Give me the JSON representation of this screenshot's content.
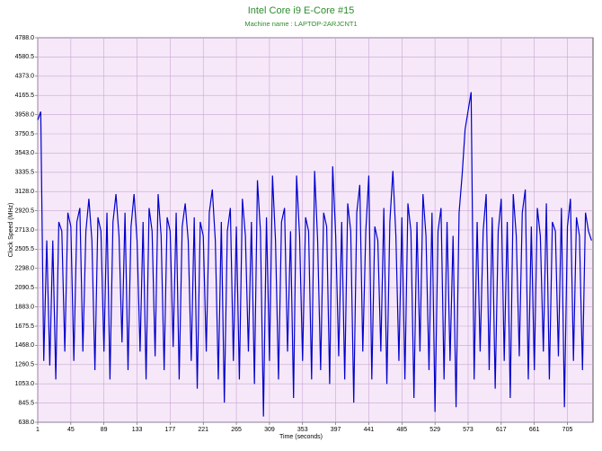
{
  "chart_data": {
    "type": "line",
    "title": "Intel Core i9 E-Core #15",
    "subtitle": "Machine name : LAPTOP-2ARJCNT1",
    "x_label": "Time (seconds)",
    "y_label": "Clock Speed (MHz)",
    "color": "#0000cc",
    "grid": true,
    "xlim": [
      1,
      739
    ],
    "xticks": [
      1,
      45,
      89,
      133,
      177,
      221,
      265,
      309,
      353,
      397,
      441,
      485,
      529,
      573,
      617,
      661,
      705
    ],
    "ylim": [
      638,
      4788
    ],
    "yticks": [
      {
        "value": 638,
        "label": "638.0"
      },
      {
        "value": 845.5,
        "label": "845.5"
      },
      {
        "value": 1053,
        "label": "1053.0"
      },
      {
        "value": 1260.5,
        "label": "1260.5"
      },
      {
        "value": 1468,
        "label": "1468.0"
      },
      {
        "value": 1675.5,
        "label": "1675.5"
      },
      {
        "value": 1883,
        "label": "1883.0"
      },
      {
        "value": 2090.5,
        "label": "2090.5"
      },
      {
        "value": 2298,
        "label": "2298.0"
      },
      {
        "value": 2505.5,
        "label": "2505.5"
      },
      {
        "value": 2713,
        "label": "2713.0"
      },
      {
        "value": 2920.5,
        "label": "2920.5"
      },
      {
        "value": 3128,
        "label": "3128.0"
      },
      {
        "value": 3335.5,
        "label": "3335.5"
      },
      {
        "value": 3543,
        "label": "3543.0"
      },
      {
        "value": 3750.5,
        "label": "3750.5"
      },
      {
        "value": 3958,
        "label": "3958.0"
      },
      {
        "value": 4165.5,
        "label": "4165.5"
      },
      {
        "value": 4373,
        "label": "4373.0"
      },
      {
        "value": 4580.5,
        "label": "4580.5"
      },
      {
        "value": 4788,
        "label": "4788.0"
      }
    ],
    "x": [
      1,
      5,
      9,
      13,
      17,
      21,
      25,
      29,
      33,
      37,
      41,
      45,
      49,
      53,
      57,
      61,
      65,
      69,
      73,
      77,
      81,
      85,
      89,
      93,
      97,
      101,
      105,
      109,
      113,
      117,
      121,
      125,
      129,
      133,
      137,
      141,
      145,
      149,
      153,
      157,
      161,
      165,
      169,
      173,
      177,
      181,
      185,
      189,
      193,
      197,
      201,
      205,
      209,
      213,
      217,
      221,
      225,
      229,
      233,
      237,
      241,
      245,
      249,
      253,
      257,
      261,
      265,
      269,
      273,
      277,
      281,
      285,
      289,
      293,
      297,
      301,
      305,
      309,
      313,
      317,
      321,
      325,
      329,
      333,
      337,
      341,
      345,
      349,
      353,
      357,
      361,
      365,
      369,
      373,
      377,
      381,
      385,
      389,
      393,
      397,
      401,
      405,
      409,
      413,
      417,
      421,
      425,
      429,
      433,
      437,
      441,
      445,
      449,
      453,
      457,
      461,
      465,
      469,
      473,
      477,
      481,
      485,
      489,
      493,
      497,
      501,
      505,
      509,
      513,
      517,
      521,
      525,
      529,
      533,
      537,
      541,
      545,
      549,
      553,
      557,
      561,
      565,
      569,
      573,
      577,
      581,
      585,
      589,
      593,
      597,
      601,
      605,
      609,
      613,
      617,
      621,
      625,
      629,
      633,
      637,
      641,
      645,
      649,
      653,
      657,
      661,
      665,
      669,
      673,
      677,
      681,
      685,
      689,
      693,
      697,
      701,
      705,
      709,
      713,
      717,
      721,
      725,
      729,
      733,
      737
    ],
    "values": [
      3900,
      3990,
      1300,
      2600,
      1250,
      2600,
      1100,
      2800,
      2700,
      1400,
      2900,
      2750,
      1300,
      2800,
      2950,
      1400,
      2700,
      3050,
      2600,
      1200,
      2850,
      2700,
      1400,
      2900,
      1100,
      2800,
      3100,
      2650,
      1500,
      2900,
      1200,
      2750,
      3100,
      2600,
      1400,
      2800,
      1100,
      2950,
      2700,
      1350,
      3100,
      2650,
      1200,
      2850,
      2700,
      1450,
      2900,
      1100,
      2750,
      3000,
      2600,
      1300,
      2850,
      1000,
      2800,
      2650,
      1400,
      2900,
      3150,
      2600,
      1100,
      2800,
      850,
      2700,
      2950,
      1300,
      2750,
      1100,
      3050,
      2650,
      1400,
      2800,
      1050,
      3250,
      2700,
      700,
      2850,
      1300,
      3300,
      2600,
      1100,
      2800,
      2950,
      1400,
      2700,
      900,
      3300,
      2650,
      1300,
      2850,
      2700,
      1100,
      3350,
      2600,
      1200,
      2900,
      2750,
      1050,
      3400,
      2650,
      1350,
      2800,
      1100,
      3000,
      2700,
      850,
      2900,
      3200,
      1400,
      2700,
      3300,
      1100,
      2750,
      2600,
      1400,
      2950,
      1050,
      2800,
      3350,
      2650,
      1300,
      2850,
      1100,
      3000,
      2700,
      900,
      2800,
      1400,
      3100,
      2650,
      1200,
      2900,
      750,
      2700,
      2950,
      1100,
      2800,
      1300,
      2650,
      800,
      2900,
      3300,
      3800,
      4000,
      4200,
      1100,
      2800,
      1400,
      2700,
      3100,
      1200,
      2850,
      1000,
      2700,
      3050,
      1300,
      2800,
      900,
      3100,
      2650,
      1350,
      2900,
      3150,
      1100,
      2750,
      1200,
      2950,
      2650,
      1400,
      3000,
      1100,
      2800,
      2700,
      1350,
      2950,
      800,
      2750,
      3050,
      1300,
      2850,
      2650,
      1200,
      2900,
      2700,
      2600
    ]
  }
}
